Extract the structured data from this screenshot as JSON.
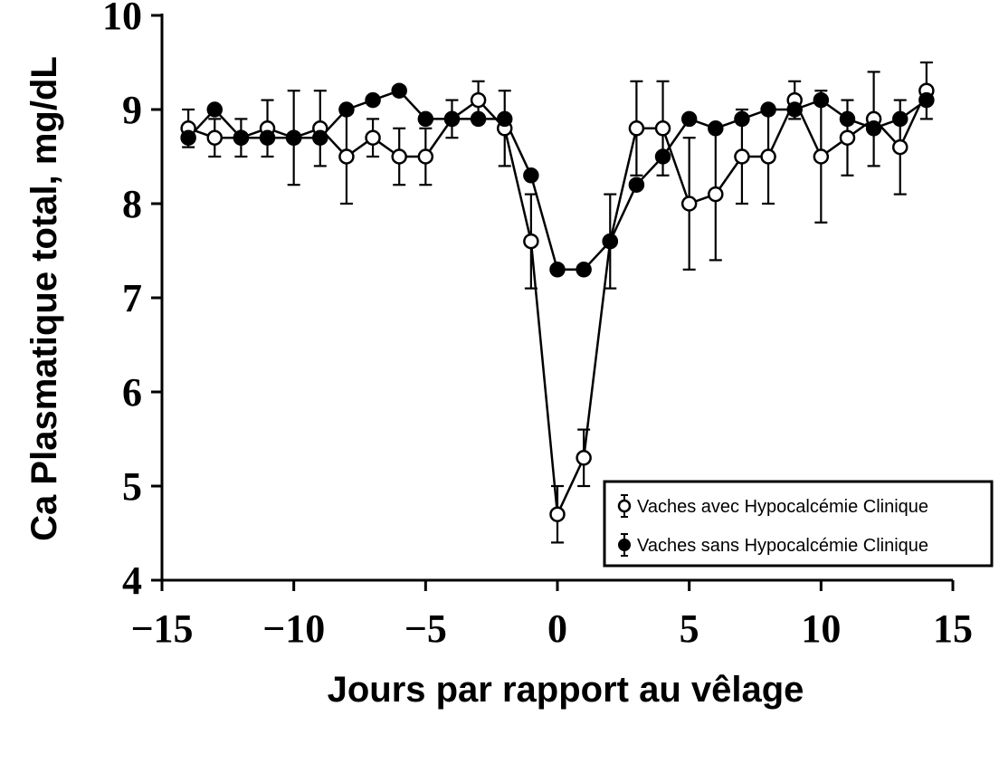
{
  "chart_data": {
    "type": "line",
    "xlabel": "Jours par rapport au vêlage",
    "ylabel": "Ca Plasmatique total, mg/dL",
    "xlim": [
      -15,
      15
    ],
    "ylim": [
      4,
      10
    ],
    "x_ticks": [
      -15,
      -10,
      -5,
      0,
      5,
      10,
      15
    ],
    "x_tick_labels": [
      "−15",
      "−10",
      "−5",
      "0",
      "5",
      "10",
      "15"
    ],
    "y_ticks": [
      4,
      5,
      6,
      7,
      8,
      9,
      10
    ],
    "y_tick_labels": [
      "4",
      "5",
      "6",
      "7",
      "8",
      "9",
      "10"
    ],
    "legend_position": "bottom-right",
    "x": [
      -14,
      -13,
      -12,
      -11,
      -10,
      -9,
      -8,
      -7,
      -6,
      -5,
      -4,
      -3,
      -2,
      -1,
      0,
      1,
      2,
      3,
      4,
      5,
      6,
      7,
      8,
      9,
      10,
      11,
      12,
      13,
      14
    ],
    "series": [
      {
        "name": "Vaches avec Hypocalcémie Clinique",
        "marker": "open-circle",
        "values": [
          8.8,
          8.7,
          8.7,
          8.8,
          8.7,
          8.8,
          8.5,
          8.7,
          8.5,
          8.5,
          8.9,
          9.1,
          8.8,
          7.6,
          4.7,
          5.3,
          7.6,
          8.8,
          8.8,
          8.0,
          8.1,
          8.5,
          8.5,
          9.1,
          8.5,
          8.7,
          8.9,
          8.6,
          9.2
        ],
        "errors": [
          0.2,
          0.2,
          0.2,
          0.3,
          0.5,
          0.4,
          0.5,
          0.2,
          0.3,
          0.3,
          0.2,
          0.2,
          0.4,
          0.5,
          0.3,
          0.3,
          0.5,
          0.5,
          0.5,
          0.7,
          0.7,
          0.5,
          0.5,
          0.2,
          0.7,
          0.4,
          0.5,
          0.5,
          0.3
        ]
      },
      {
        "name": "Vaches sans Hypocalcémie Clinique",
        "marker": "filled-circle",
        "values": [
          8.7,
          9.0,
          8.7,
          8.7,
          8.7,
          8.7,
          9.0,
          9.1,
          9.2,
          8.9,
          8.9,
          8.9,
          8.9,
          8.3,
          7.3,
          7.3,
          7.6,
          8.2,
          8.5,
          8.9,
          8.8,
          8.9,
          9.0,
          9.0,
          9.1,
          8.9,
          8.8,
          8.9,
          9.1
        ]
      }
    ]
  }
}
